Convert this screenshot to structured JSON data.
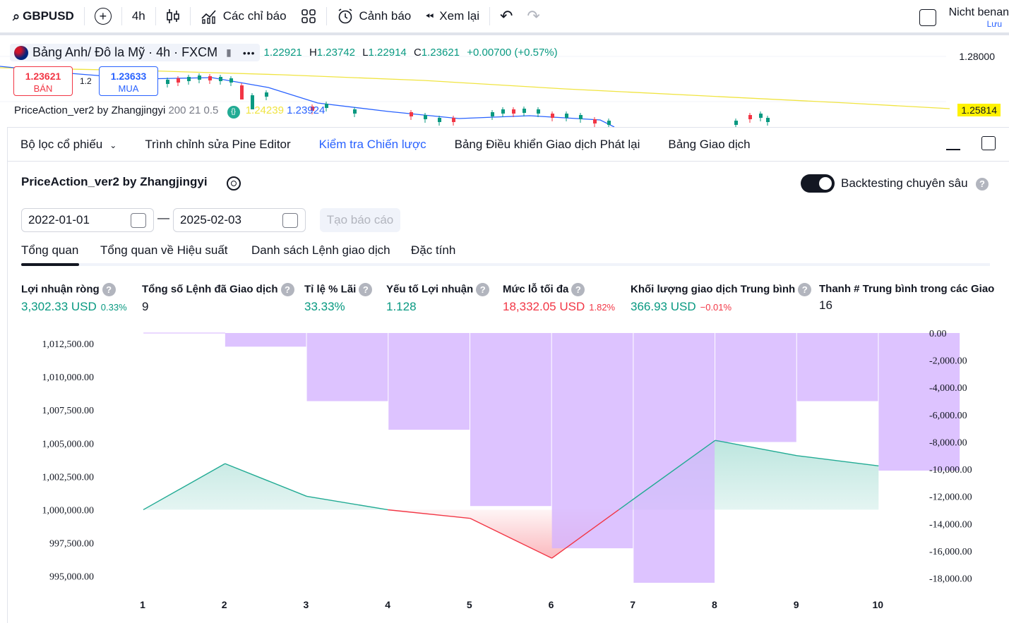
{
  "toolbar": {
    "symbol": "GBPUSD",
    "interval": "4h",
    "indicators": "Các chỉ báo",
    "alerts": "Cảnh báo",
    "replay": "Xem lại",
    "account_name": "Nicht benan",
    "account_sub": "Lưu"
  },
  "chart": {
    "title": "Bảng Anh/ Đô la Mỹ · 4h · FXCM",
    "ohlc": [
      {
        "label": "",
        "value": "1.22921"
      },
      {
        "label": "H",
        "value": "1.23742"
      },
      {
        "label": "L",
        "value": "1.22914"
      },
      {
        "label": "C",
        "value": "1.23621"
      },
      {
        "label": "",
        "value": "+0.00700 (+0.57%)"
      }
    ],
    "sell_price": "1.23621",
    "sell_label": "BÁN",
    "buy_price": "1.23633",
    "buy_label": "MUA",
    "spread": "1.2",
    "indicator_name": "PriceAction_ver2 by Zhangjingyi",
    "indicator_params": "200 21 0.5",
    "indicator_val1": "1.24239",
    "indicator_val2": "1.23924",
    "axis_top": "1.28000",
    "axis_tag": "1.25814"
  },
  "panel": {
    "tabs": [
      {
        "label": "Bộ lọc cổ phiếu",
        "active": false
      },
      {
        "label": "Trình chỉnh sửa Pine Editor",
        "active": false
      },
      {
        "label": "Kiểm tra Chiến lược",
        "active": true
      },
      {
        "label": "Bảng Điều khiển Giao dịch Phát lại",
        "active": false
      },
      {
        "label": "Bảng Giao dịch",
        "active": false
      }
    ],
    "strategy_title": "PriceAction_ver2 by Zhangjingyi",
    "deep_backtest_label": "Backtesting chuyên sâu",
    "deep_backtest_on": true,
    "date_from": "2022-01-01",
    "date_to": "2025-02-03",
    "report_button": "Tạo báo cáo",
    "subtabs": [
      "Tổng quan",
      "Tổng quan về Hiệu suất",
      "Danh sách Lệnh giao dịch",
      "Đặc tính"
    ],
    "metrics": [
      {
        "label": "Lợi nhuận ròng",
        "value": "3,302.33 USD",
        "extra": "0.33%",
        "color": "#089981"
      },
      {
        "label": "Tổng số Lệnh đã Giao dịch",
        "value": "9",
        "extra": "",
        "color": "#131722"
      },
      {
        "label": "Tỉ lệ % Lãi",
        "value": "33.33%",
        "extra": "",
        "color": "#089981"
      },
      {
        "label": "Yếu tố Lợi nhuận",
        "value": "1.128",
        "extra": "",
        "color": "#089981"
      },
      {
        "label": "Mức lỗ tối đa",
        "value": "18,332.05 USD",
        "extra": "1.82%",
        "color": "#f23645"
      },
      {
        "label": "Khối lượng giao dịch Trung bình",
        "value": "366.93 USD",
        "extra": "−0.01%",
        "color": "#089981"
      },
      {
        "label": "Thanh # Trung bình trong các Giao",
        "value": "16",
        "extra": "",
        "color": "#131722"
      }
    ]
  },
  "chart_data": {
    "type": "line",
    "x": [
      1,
      2,
      3,
      4,
      5,
      6,
      7,
      8,
      9,
      10
    ],
    "series": [
      {
        "values": [
          1000000,
          1003470,
          1001010,
          999990,
          999350,
          996350,
          1000800,
          1005220,
          1004070,
          1003302
        ],
        "axis": "left"
      }
    ],
    "drawdown_bars": [
      0,
      -1000,
      -5000,
      -7100,
      -12700,
      -15800,
      -18332,
      -8000,
      -5000,
      -10100
    ],
    "left_ticks": [
      "1,012,500.00",
      "1,010,000.00",
      "1,007,500.00",
      "1,005,000.00",
      "1,002,500.00",
      "1,000,000.00",
      "997,500.00",
      "995,000.00"
    ],
    "right_ticks": [
      "0.00",
      "-2,000.00",
      "-4,000.00",
      "-6,000.00",
      "-8,000.00",
      "-10,000.00",
      "-12,000.00",
      "-14,000.00",
      "-16,000.00",
      "-18,000.00"
    ],
    "ylim_left": [
      994500,
      1013300
    ],
    "ylim_right": [
      -18332,
      0
    ],
    "colors": {
      "equity_up": "#22ab94",
      "equity_down": "#f23645",
      "drawdown": "#d4b2ff"
    }
  }
}
